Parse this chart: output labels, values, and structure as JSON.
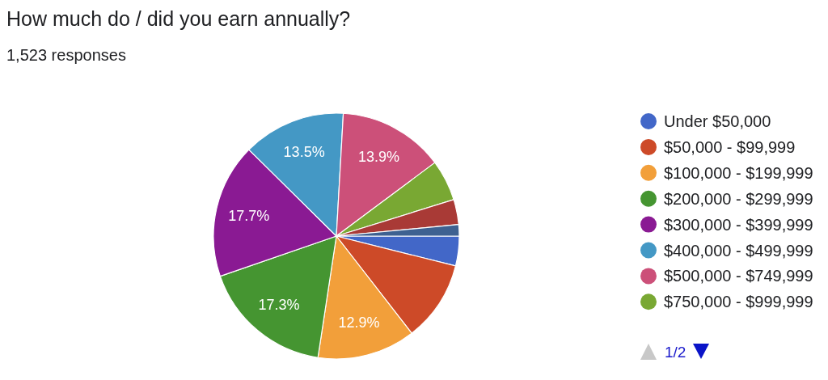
{
  "chart_data": {
    "type": "pie",
    "title": "How much do / did you earn annually?",
    "subtitle": "1,523 responses",
    "categories": [
      "Under $50,000",
      "$50,000 - $99,999",
      "$100,000 - $199,999",
      "$200,000 - $299,999",
      "$300,000 - $399,999",
      "$400,000 - $499,999",
      "$500,000 - $749,999",
      "$750,000 - $999,999",
      null,
      null
    ],
    "values": [
      3.9,
      10.6,
      12.9,
      17.3,
      17.7,
      13.5,
      13.9,
      5.4,
      3.3,
      1.5
    ],
    "colors": [
      "#4267c8",
      "#cd4a28",
      "#f29f3a",
      "#459531",
      "#8a1a93",
      "#4498c5",
      "#cc5079",
      "#79a833",
      "#a93a36",
      "#3e6191"
    ],
    "value_labels": [
      null,
      null,
      "12.9%",
      "17.3%",
      "17.7%",
      "13.5%",
      "13.9%",
      null,
      null,
      null
    ],
    "legend": "right",
    "annotations": [
      "1/2"
    ]
  }
}
